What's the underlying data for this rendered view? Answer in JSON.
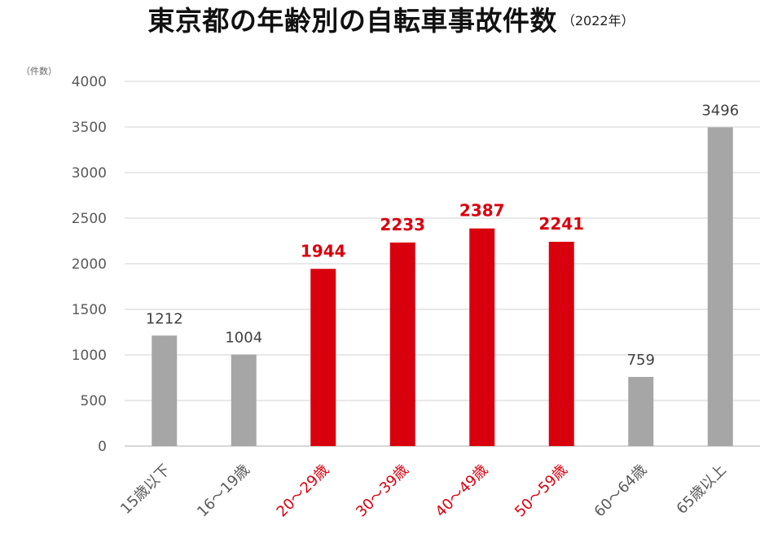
{
  "title": "東京都の年齢別の自転車事故件数",
  "subtitle": "（2022年）",
  "unit_label": "（件数）",
  "colors": {
    "highlight": "#d9000e",
    "normal": "#a6a6a6",
    "grid": "#d9d9d9",
    "axis_text": "#595959",
    "label_normal": "#404040"
  },
  "chart_data": {
    "type": "bar",
    "title": "東京都の年齢別の自転車事故件数",
    "subtitle": "（2022年）",
    "ylabel": "（件数）",
    "xlabel": "",
    "ylim": [
      0,
      4000
    ],
    "yticks": [
      0,
      500,
      1000,
      1500,
      2000,
      2500,
      3000,
      3500,
      4000
    ],
    "grid": true,
    "categories": [
      "15歳以下",
      "16～19歳",
      "20～29歳",
      "30～39歳",
      "40～49歳",
      "50～59歳",
      "60～64歳",
      "65歳以上"
    ],
    "values": [
      1212,
      1004,
      1944,
      2233,
      2387,
      2241,
      759,
      3496
    ],
    "highlighted": [
      false,
      false,
      true,
      true,
      true,
      true,
      false,
      false
    ]
  }
}
